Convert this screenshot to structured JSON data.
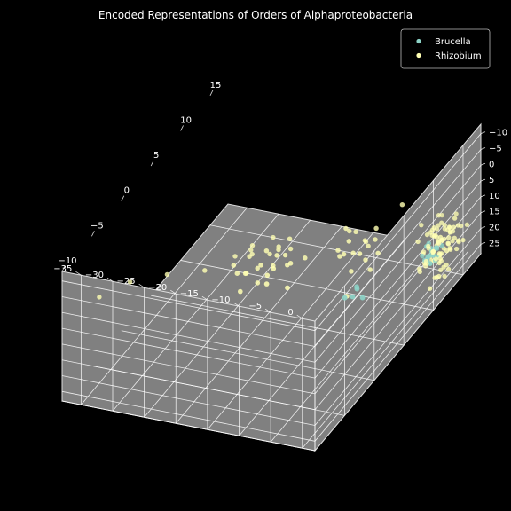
{
  "chart_data": {
    "type": "scatter",
    "projection": "3d",
    "title": "Encoded Representations of Orders of Alphaproteobacteria",
    "xlabel": "",
    "ylabel": "",
    "zlabel": "",
    "xlim": [
      -10,
      18
    ],
    "ylim": [
      -38,
      2
    ],
    "zlim": [
      -13,
      28
    ],
    "x_ticks": [
      "−10",
      "−5",
      "0",
      "5",
      "10",
      "15"
    ],
    "y_ticks": [
      "0",
      "−5",
      "−10",
      "−15",
      "−20",
      "−25",
      "−30",
      "−35"
    ],
    "z_ticks": [
      "25",
      "20",
      "15",
      "10",
      "5",
      "0",
      "−5",
      "−10"
    ],
    "grid": true,
    "background": "#000000",
    "pane_color": "#808080",
    "legend_position": "top-right",
    "series": [
      {
        "name": "Brucella",
        "color": "#8dd3c7",
        "points": [
          [
            12.0,
            0.0,
            16.0
          ],
          [
            12.4,
            -0.6,
            14.8
          ],
          [
            11.6,
            -0.3,
            15.6
          ],
          [
            12.8,
            -0.9,
            16.8
          ],
          [
            11.2,
            0.2,
            14.2
          ],
          [
            12.1,
            -1.1,
            13.8
          ],
          [
            11.9,
            0.5,
            17.2
          ],
          [
            12.6,
            0.1,
            15.1
          ],
          [
            11.4,
            -0.7,
            16.4
          ],
          [
            12.3,
            0.4,
            14.0
          ],
          [
            11.8,
            -0.2,
            18.2
          ],
          [
            12.2,
            -0.8,
            12.9
          ],
          [
            13.0,
            -0.4,
            15.9
          ],
          [
            11.0,
            0.1,
            15.3
          ],
          [
            12.5,
            -1.3,
            14.5
          ],
          [
            12.0,
            0.7,
            16.1
          ],
          [
            11.5,
            0.3,
            13.4
          ],
          [
            12.7,
            -0.5,
            17.7
          ],
          [
            11.3,
            -1.0,
            15.0
          ],
          [
            12.9,
            0.6,
            14.6
          ],
          [
            11.7,
            -0.1,
            17.9
          ],
          [
            12.1,
            -0.9,
            16.9
          ],
          [
            -1.5,
            0.0,
            -1.0
          ],
          [
            -0.8,
            0.9,
            0.5
          ],
          [
            -2.2,
            -0.6,
            -2.0
          ],
          [
            -1.2,
            0.4,
            -3.0
          ],
          [
            -0.5,
            -0.3,
            -1.8
          ]
        ]
      },
      {
        "name": "Rhizobium",
        "color": "#ffffb3",
        "points": [
          [
            13.0,
            0.0,
            14.0
          ],
          [
            13.5,
            -0.5,
            15.0
          ],
          [
            12.5,
            0.5,
            13.0
          ],
          [
            13.8,
            0.8,
            16.0
          ],
          [
            12.2,
            -0.8,
            14.5
          ],
          [
            14.0,
            -1.2,
            12.5
          ],
          [
            13.3,
            1.0,
            17.0
          ],
          [
            12.8,
            -0.3,
            11.5
          ],
          [
            14.4,
            0.3,
            15.5
          ],
          [
            12.0,
            1.2,
            16.5
          ],
          [
            13.6,
            -1.6,
            13.8
          ],
          [
            12.6,
            0.9,
            12.0
          ],
          [
            14.2,
            1.4,
            14.8
          ],
          [
            11.9,
            -1.4,
            15.8
          ],
          [
            13.1,
            0.2,
            18.0
          ],
          [
            14.6,
            -0.6,
            16.8
          ],
          [
            12.4,
            -0.1,
            10.8
          ],
          [
            13.9,
            0.6,
            11.8
          ],
          [
            12.9,
            1.6,
            13.5
          ],
          [
            13.4,
            -1.0,
            17.5
          ],
          [
            14.8,
            0.0,
            13.2
          ],
          [
            11.6,
            0.4,
            14.0
          ],
          [
            13.7,
            1.1,
            10.5
          ],
          [
            12.3,
            -1.7,
            16.2
          ],
          [
            14.1,
            -0.2,
            18.5
          ],
          [
            13.2,
            -0.9,
            10.2
          ],
          [
            12.7,
            0.7,
            19.0
          ],
          [
            14.5,
            1.0,
            12.2
          ],
          [
            11.8,
            -0.5,
            12.8
          ],
          [
            13.0,
            1.8,
            15.2
          ],
          [
            15.0,
            -0.9,
            14.6
          ],
          [
            12.1,
            0.1,
            17.8
          ],
          [
            13.6,
            0.4,
            9.8
          ],
          [
            14.3,
            -1.5,
            15.9
          ],
          [
            12.9,
            -1.2,
            18.8
          ],
          [
            13.4,
            1.5,
            16.6
          ],
          [
            11.5,
            1.0,
            15.6
          ],
          [
            14.7,
            0.6,
            17.2
          ],
          [
            12.6,
            -0.6,
            9.5
          ],
          [
            13.8,
            -0.3,
            19.5
          ],
          [
            15.2,
            0.2,
            15.4
          ],
          [
            11.7,
            -1.0,
            18.2
          ],
          [
            14.9,
            -1.8,
            13.6
          ],
          [
            12.2,
            1.3,
            11.2
          ],
          [
            13.1,
            -1.9,
            12.6
          ],
          [
            14.0,
            1.9,
            17.6
          ],
          [
            12.8,
            0.3,
            20.0
          ],
          [
            13.5,
            0.0,
            9.0
          ],
          [
            15.4,
            -0.4,
            16.2
          ],
          [
            11.4,
            0.6,
            13.2
          ],
          [
            13.9,
            -0.7,
            20.4
          ],
          [
            12.0,
            -0.3,
            8.8
          ],
          [
            14.6,
            1.6,
            11.6
          ],
          [
            13.3,
            -1.4,
            21.0
          ],
          [
            12.5,
            1.7,
            19.4
          ],
          [
            15.6,
            1.1,
            14.2
          ],
          [
            11.2,
            -0.2,
            16.8
          ],
          [
            14.2,
            -1.1,
            8.6
          ],
          [
            13.0,
            0.8,
            21.6
          ],
          [
            12.4,
            -1.5,
            20.8
          ],
          [
            16.0,
            -1.0,
            18.0
          ],
          [
            15.8,
            0.5,
            19.5
          ],
          [
            16.4,
            0.0,
            21.5
          ],
          [
            13.4,
            1.2,
            23.0
          ],
          [
            12.8,
            -0.4,
            25.0
          ],
          [
            13.8,
            0.2,
            26.5
          ],
          [
            14.2,
            -0.8,
            25.8
          ],
          [
            11.0,
            0.5,
            24.0
          ],
          [
            12.0,
            1.0,
            22.2
          ],
          [
            10.8,
            -0.9,
            18.8
          ],
          [
            11.2,
            1.4,
            20.6
          ],
          [
            10.6,
            0.3,
            14.6
          ],
          [
            10.2,
            -0.4,
            16.4
          ],
          [
            11.0,
            2.0,
            12.4
          ],
          [
            10.4,
            1.6,
            10.6
          ],
          [
            10.8,
            -1.2,
            9.4
          ],
          [
            15.0,
            2.0,
            17.0
          ],
          [
            15.6,
            -1.9,
            12.0
          ],
          [
            16.2,
            1.5,
            15.0
          ],
          [
            12.2,
            -2.0,
            7.6
          ],
          [
            14.8,
            -2.0,
            19.8
          ],
          [
            11.4,
            1.8,
            8.2
          ],
          [
            16.5,
            -0.5,
            13.0
          ],
          [
            13.6,
            2.0,
            7.0
          ],
          [
            6.0,
            -5.0,
            6.0
          ],
          [
            5.0,
            -6.0,
            2.0
          ],
          [
            7.0,
            -5.5,
            4.0
          ],
          [
            4.5,
            -4.5,
            0.5
          ],
          [
            6.5,
            -7.0,
            -1.0
          ],
          [
            5.5,
            -3.8,
            7.5
          ],
          [
            6.8,
            -4.2,
            1.0
          ],
          [
            4.8,
            -6.5,
            -2.0
          ],
          [
            7.2,
            -6.2,
            3.0
          ],
          [
            3.8,
            -5.2,
            4.8
          ],
          [
            5.9,
            -8.0,
            -3.0
          ],
          [
            7.6,
            -4.8,
            -0.5
          ],
          [
            4.2,
            -7.4,
            1.8
          ],
          [
            6.2,
            -3.2,
            3.6
          ],
          [
            5.2,
            -8.6,
            2.6
          ],
          [
            8.0,
            -6.8,
            5.4
          ],
          [
            3.4,
            -6.0,
            -1.2
          ],
          [
            6.9,
            -8.4,
            0.2
          ],
          [
            9.0,
            -2.0,
            -6.0
          ],
          [
            2.2,
            -4.4,
            8.8
          ],
          [
            0.0,
            -14.0,
            -2.0
          ],
          [
            -1.0,
            -15.0,
            -4.0
          ],
          [
            1.0,
            -13.0,
            -3.5
          ],
          [
            -0.5,
            -16.0,
            -1.5
          ],
          [
            0.5,
            -15.5,
            -5.0
          ],
          [
            -1.5,
            -13.5,
            -2.5
          ],
          [
            1.5,
            -14.5,
            -4.5
          ],
          [
            -2.0,
            -16.5,
            -3.0
          ],
          [
            0.8,
            -12.5,
            -1.0
          ],
          [
            -0.8,
            -17.0,
            -5.5
          ],
          [
            2.0,
            -15.0,
            -2.2
          ],
          [
            -1.2,
            -12.8,
            -4.2
          ],
          [
            0.2,
            -17.5,
            -3.8
          ],
          [
            -2.4,
            -14.2,
            -1.8
          ],
          [
            1.8,
            -16.2,
            -0.8
          ],
          [
            -0.2,
            -13.2,
            -6.0
          ],
          [
            2.6,
            -13.8,
            -4.8
          ],
          [
            -1.8,
            -18.0,
            -2.0
          ],
          [
            1.2,
            -18.4,
            -4.0
          ],
          [
            -2.8,
            -15.6,
            -5.2
          ],
          [
            0.4,
            -11.6,
            -2.8
          ],
          [
            3.0,
            -16.8,
            -3.2
          ],
          [
            -3.0,
            -12.2,
            -3.6
          ],
          [
            1.6,
            -19.0,
            -1.4
          ],
          [
            -1.0,
            -10.8,
            1.5
          ],
          [
            2.4,
            -11.2,
            -0.2
          ],
          [
            -2.6,
            -17.8,
            -6.4
          ],
          [
            0.0,
            -20.0,
            -2.6
          ],
          [
            3.4,
            -14.4,
            0.4
          ],
          [
            -3.4,
            -16.0,
            -0.6
          ],
          [
            -8.0,
            -34.0,
            -2.0
          ],
          [
            -6.0,
            -31.0,
            -3.5
          ],
          [
            -4.0,
            -27.0,
            -3.0
          ],
          [
            -3.0,
            -22.0,
            -4.0
          ]
        ]
      }
    ]
  }
}
